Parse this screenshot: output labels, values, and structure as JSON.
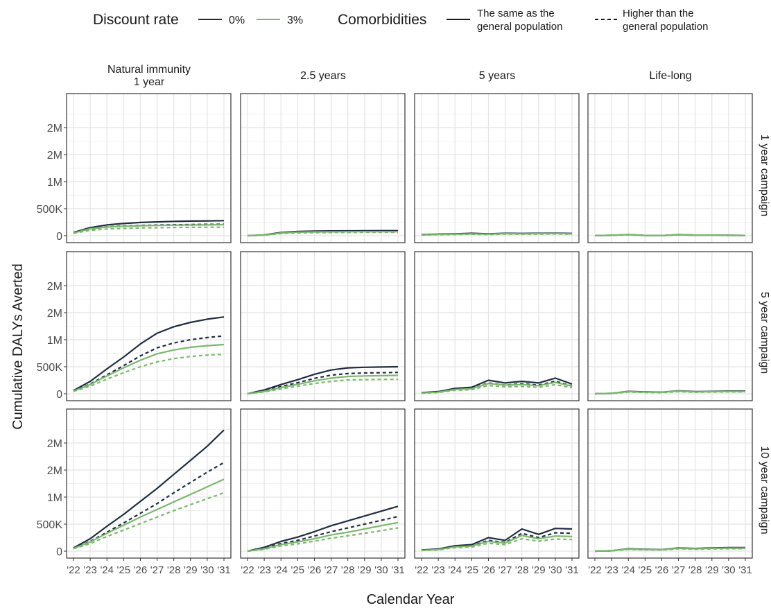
{
  "legend": {
    "discount_title": "Discount rate",
    "discount_items": [
      {
        "label": "0%",
        "color": "#1f2d44"
      },
      {
        "label": "3%",
        "color": "#79b96a"
      }
    ],
    "comorbidity_title": "Comorbidities",
    "comorbidity_items": [
      {
        "line1": "The same as the",
        "line2": "general population",
        "dash": "solid"
      },
      {
        "line1": "Higher than the",
        "line2": "general population",
        "dash": "dashed"
      }
    ]
  },
  "chart_data": {
    "type": "line",
    "facet_type": "grid",
    "xlabel": "Calendar Year",
    "ylabel": "Cumulative DALYs Averted",
    "x": [
      "'22",
      "'23",
      "'24",
      "'25",
      "'26",
      "'27",
      "'28",
      "'29",
      "'30",
      "'31"
    ],
    "ylim": [
      0,
      2500000
    ],
    "yticks": [
      0,
      500000,
      1000000,
      1500000,
      2000000
    ],
    "ytick_labels": [
      "0",
      "500K",
      "1M",
      "2M",
      "2M"
    ],
    "columns": [
      {
        "line1": "Natural immunity",
        "line2": "1 year"
      },
      {
        "line1": "2.5 years",
        "line2": ""
      },
      {
        "line1": "5 years",
        "line2": ""
      },
      {
        "line1": "Life-long",
        "line2": ""
      }
    ],
    "rows": [
      "1 year campaign",
      "5 year campaign",
      "10 year campaign"
    ],
    "series_styles": [
      {
        "discount": "0%",
        "comorbidities": "The same as the general population",
        "color": "#1f2d44",
        "dash": "solid"
      },
      {
        "discount": "0%",
        "comorbidities": "Higher than the general population",
        "color": "#1f2d44",
        "dash": "dashed"
      },
      {
        "discount": "3%",
        "comorbidities": "The same as the general population",
        "color": "#79b96a",
        "dash": "solid"
      },
      {
        "discount": "3%",
        "comorbidities": "Higher than the general population",
        "color": "#79b96a",
        "dash": "dashed"
      }
    ],
    "panels": [
      {
        "row": 0,
        "col": 0,
        "series": [
          [
            60000,
            150000,
            200000,
            225000,
            245000,
            255000,
            265000,
            270000,
            275000,
            278000
          ],
          [
            55000,
            120000,
            165000,
            180000,
            190000,
            197000,
            202000,
            207000,
            210000,
            212000
          ],
          [
            50000,
            130000,
            160000,
            175000,
            185000,
            190000,
            195000,
            198000,
            200000,
            202000
          ],
          [
            45000,
            100000,
            125000,
            135000,
            143000,
            148000,
            152000,
            155000,
            157000,
            158000
          ]
        ]
      },
      {
        "row": 0,
        "col": 1,
        "series": [
          [
            0,
            15000,
            60000,
            80000,
            85000,
            88000,
            90000,
            92000,
            93000,
            94000
          ],
          [
            0,
            12000,
            50000,
            65000,
            70000,
            73000,
            75000,
            76000,
            77000,
            78000
          ],
          [
            0,
            12000,
            50000,
            65000,
            70000,
            72000,
            74000,
            75000,
            76000,
            76000
          ],
          [
            0,
            10000,
            40000,
            52000,
            56000,
            58000,
            60000,
            61000,
            62000,
            62000
          ]
        ]
      },
      {
        "row": 0,
        "col": 2,
        "series": [
          [
            20000,
            30000,
            35000,
            45000,
            35000,
            45000,
            42000,
            45000,
            48000,
            42000
          ],
          [
            18000,
            25000,
            30000,
            38000,
            30000,
            38000,
            36000,
            38000,
            40000,
            36000
          ],
          [
            15000,
            25000,
            28000,
            35000,
            28000,
            38000,
            35000,
            38000,
            40000,
            35000
          ],
          [
            12000,
            20000,
            22000,
            28000,
            22000,
            30000,
            28000,
            30000,
            32000,
            28000
          ]
        ]
      },
      {
        "row": 0,
        "col": 3,
        "series": [
          [
            2000,
            8000,
            22000,
            5000,
            2000,
            20000,
            12000,
            10000,
            8000,
            5000
          ],
          [
            2000,
            7000,
            19000,
            4000,
            2000,
            17000,
            10000,
            8000,
            7000,
            4000
          ],
          [
            2000,
            8000,
            22000,
            5000,
            2000,
            20000,
            12000,
            10000,
            8000,
            5000
          ],
          [
            1500,
            6000,
            17000,
            4000,
            1500,
            15000,
            9000,
            8000,
            6000,
            4000
          ]
        ]
      },
      {
        "row": 1,
        "col": 0,
        "series": [
          [
            60000,
            230000,
            460000,
            680000,
            920000,
            1120000,
            1240000,
            1320000,
            1380000,
            1420000
          ],
          [
            55000,
            180000,
            350000,
            520000,
            700000,
            850000,
            940000,
            1000000,
            1040000,
            1070000
          ],
          [
            50000,
            170000,
            330000,
            480000,
            620000,
            740000,
            810000,
            860000,
            890000,
            910000
          ],
          [
            45000,
            140000,
            270000,
            390000,
            500000,
            590000,
            650000,
            690000,
            715000,
            730000
          ]
        ]
      },
      {
        "row": 1,
        "col": 1,
        "series": [
          [
            0,
            70000,
            170000,
            260000,
            360000,
            440000,
            480000,
            490000,
            495000,
            500000
          ],
          [
            0,
            55000,
            135000,
            205000,
            285000,
            345000,
            375000,
            385000,
            390000,
            395000
          ],
          [
            0,
            45000,
            115000,
            175000,
            240000,
            290000,
            320000,
            330000,
            335000,
            340000
          ],
          [
            0,
            35000,
            90000,
            140000,
            190000,
            230000,
            255000,
            262000,
            266000,
            268000
          ]
        ]
      },
      {
        "row": 1,
        "col": 2,
        "series": [
          [
            20000,
            40000,
            100000,
            120000,
            250000,
            200000,
            230000,
            200000,
            290000,
            180000
          ],
          [
            18000,
            32000,
            80000,
            96000,
            200000,
            160000,
            184000,
            160000,
            232000,
            144000
          ],
          [
            15000,
            30000,
            80000,
            95000,
            190000,
            160000,
            170000,
            150000,
            210000,
            140000
          ],
          [
            12000,
            24000,
            64000,
            76000,
            152000,
            128000,
            136000,
            120000,
            168000,
            112000
          ]
        ]
      },
      {
        "row": 1,
        "col": 3,
        "series": [
          [
            0,
            8000,
            45000,
            35000,
            30000,
            55000,
            40000,
            45000,
            50000,
            50000
          ],
          [
            0,
            7000,
            38000,
            30000,
            26000,
            47000,
            34000,
            38000,
            42000,
            42000
          ],
          [
            0,
            8000,
            40000,
            30000,
            28000,
            50000,
            35000,
            40000,
            42000,
            42000
          ],
          [
            0,
            6000,
            32000,
            24000,
            22000,
            40000,
            28000,
            32000,
            34000,
            34000
          ]
        ]
      },
      {
        "row": 2,
        "col": 0,
        "series": [
          [
            60000,
            230000,
            460000,
            680000,
            920000,
            1160000,
            1420000,
            1680000,
            1940000,
            2240000
          ],
          [
            55000,
            180000,
            350000,
            520000,
            700000,
            880000,
            1080000,
            1270000,
            1460000,
            1640000
          ],
          [
            50000,
            170000,
            330000,
            480000,
            630000,
            770000,
            910000,
            1050000,
            1190000,
            1330000
          ],
          [
            45000,
            140000,
            270000,
            390000,
            510000,
            630000,
            750000,
            860000,
            970000,
            1080000
          ]
        ]
      },
      {
        "row": 2,
        "col": 1,
        "series": [
          [
            0,
            70000,
            180000,
            260000,
            360000,
            470000,
            560000,
            650000,
            740000,
            830000
          ],
          [
            0,
            55000,
            140000,
            200000,
            280000,
            360000,
            430000,
            500000,
            570000,
            640000
          ],
          [
            0,
            45000,
            120000,
            170000,
            230000,
            300000,
            350000,
            410000,
            470000,
            530000
          ],
          [
            0,
            35000,
            95000,
            135000,
            185000,
            240000,
            285000,
            330000,
            380000,
            430000
          ]
        ]
      },
      {
        "row": 2,
        "col": 2,
        "series": [
          [
            20000,
            40000,
            100000,
            120000,
            250000,
            200000,
            410000,
            310000,
            420000,
            410000
          ],
          [
            18000,
            32000,
            80000,
            96000,
            200000,
            160000,
            330000,
            250000,
            340000,
            330000
          ],
          [
            15000,
            30000,
            80000,
            95000,
            180000,
            150000,
            290000,
            230000,
            280000,
            270000
          ],
          [
            12000,
            24000,
            64000,
            76000,
            145000,
            120000,
            230000,
            185000,
            225000,
            215000
          ]
        ]
      },
      {
        "row": 2,
        "col": 3,
        "series": [
          [
            0,
            8000,
            45000,
            35000,
            30000,
            60000,
            50000,
            60000,
            65000,
            65000
          ],
          [
            0,
            7000,
            38000,
            30000,
            26000,
            50000,
            42000,
            50000,
            55000,
            55000
          ],
          [
            0,
            8000,
            40000,
            30000,
            28000,
            52000,
            45000,
            52000,
            56000,
            56000
          ],
          [
            0,
            6000,
            32000,
            24000,
            22000,
            42000,
            36000,
            42000,
            45000,
            45000
          ]
        ]
      }
    ]
  }
}
